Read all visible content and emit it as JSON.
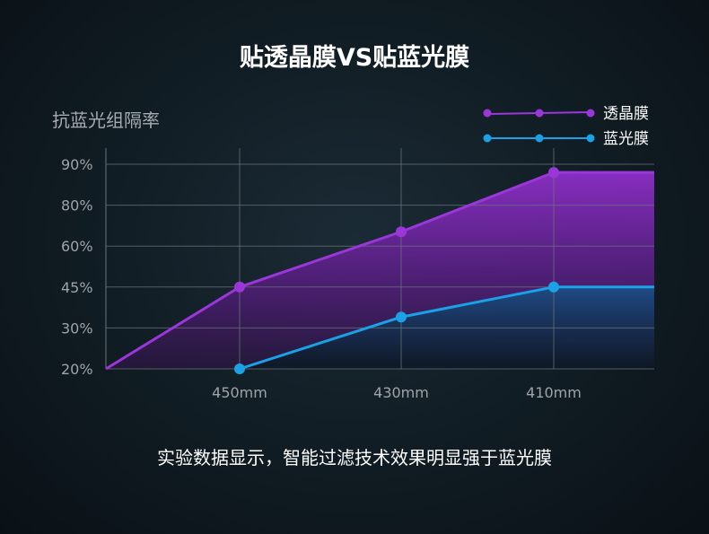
{
  "title": "贴透晶膜VS贴蓝光膜",
  "caption": "实验数据显示，智能过滤技术效果明显强于蓝光膜",
  "colors": {
    "purple": "#9b37d9",
    "blue": "#1aa1e6",
    "grid": "#6a747a",
    "tick_text": "#9ea4a8"
  },
  "chart_data": {
    "type": "area",
    "ylabel": "抗蓝光组隔率",
    "y_ticks": [
      "20%",
      "30%",
      "45%",
      "60%",
      "80%",
      "90%"
    ],
    "x_ticks": [
      "450mm",
      "430mm",
      "410mm"
    ],
    "legend_position": "top-right",
    "series": [
      {
        "name": "透晶膜",
        "color": "#9b37d9",
        "points": [
          {
            "x": "start",
            "y": 20
          },
          {
            "x": "450mm",
            "y": 45
          },
          {
            "x": "430mm",
            "y": 67
          },
          {
            "x": "410mm",
            "y": 88
          },
          {
            "x": "end",
            "y": 88
          }
        ],
        "markers": [
          "450mm",
          "430mm",
          "410mm"
        ]
      },
      {
        "name": "蓝光膜",
        "color": "#1aa1e6",
        "points": [
          {
            "x": "450mm",
            "y": 20
          },
          {
            "x": "430mm",
            "y": 34
          },
          {
            "x": "410mm",
            "y": 45
          },
          {
            "x": "end",
            "y": 45
          }
        ],
        "markers": [
          "450mm",
          "430mm",
          "410mm"
        ]
      }
    ]
  }
}
